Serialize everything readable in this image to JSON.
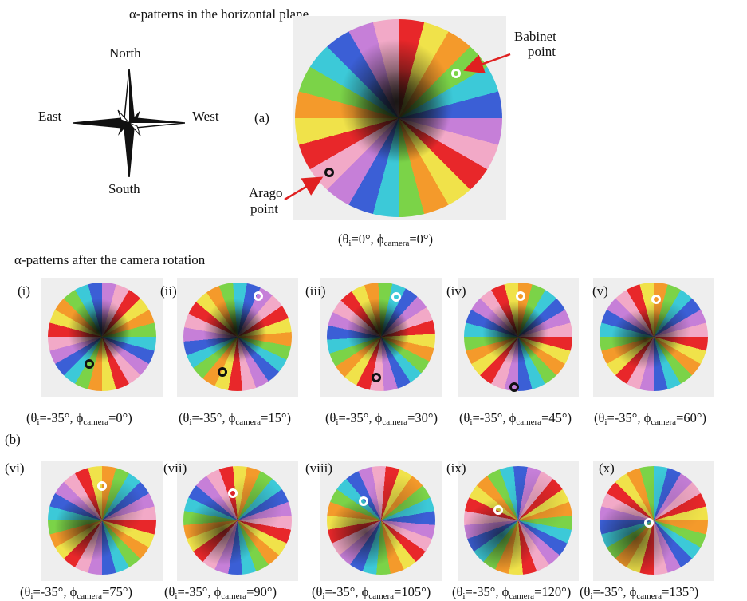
{
  "header_top": "α-patterns in the horizontal plane",
  "header_bottom": "α-patterns after the camera rotation",
  "compass": {
    "north": "North",
    "south": "South",
    "east": "East",
    "west": "West"
  },
  "label_a": "(a)",
  "label_b": "(b)",
  "main": {
    "babinet_label": [
      "Babinet",
      "point"
    ],
    "arago_label": [
      "Arago",
      "point"
    ],
    "caption": {
      "theta": "0°",
      "phi": "0°"
    },
    "rot": 0,
    "tilt": 0.95,
    "babinet": [
      0.55,
      -0.45
    ],
    "arago": [
      -0.67,
      0.55
    ]
  },
  "captions": {
    "theta_sub": "i",
    "phi_sub": "camera"
  },
  "panels": [
    {
      "label": "(i)",
      "theta": "-35°",
      "phi": "0°",
      "rot": 30,
      "tilt": 0.85,
      "white": null,
      "black": [
        -0.25,
        0.55
      ]
    },
    {
      "label": "(ii)",
      "theta": "-35°",
      "phi": "15°",
      "rot": 55,
      "tilt": 0.85,
      "white": [
        0.42,
        -0.82
      ],
      "black": [
        -0.3,
        0.7
      ]
    },
    {
      "label": "(iii)",
      "theta": "-35°",
      "phi": "30°",
      "rot": 72,
      "tilt": 0.85,
      "white": [
        0.3,
        -0.8
      ],
      "black": [
        -0.1,
        0.82
      ]
    },
    {
      "label": "(iv)",
      "theta": "-35°",
      "phi": "45°",
      "rot": 90,
      "tilt": 0.8,
      "white": [
        0.05,
        -0.82
      ],
      "black": [
        -0.08,
        1.0
      ]
    },
    {
      "label": "(v)",
      "theta": "-35°",
      "phi": "60°",
      "rot": 90,
      "tilt": 0.6,
      "white": [
        0.05,
        -0.75
      ],
      "black": null
    },
    {
      "label": "(vi)",
      "theta": "-35°",
      "phi": "75°",
      "rot": 90,
      "tilt": 0.45,
      "white": [
        0.0,
        -0.68
      ],
      "black": null
    },
    {
      "label": "(vii)",
      "theta": "-35°",
      "phi": "90°",
      "rot": 100,
      "tilt": 0.35,
      "white": [
        -0.1,
        -0.55
      ],
      "black": null
    },
    {
      "label": "(viii)",
      "theta": "-35°",
      "phi": "105°",
      "rot": 125,
      "tilt": 0.3,
      "white": [
        -0.35,
        -0.38
      ],
      "black": null
    },
    {
      "label": "(ix)",
      "theta": "-35°",
      "phi": "120°",
      "rot": 160,
      "tilt": 0.22,
      "white": [
        -0.4,
        -0.2
      ],
      "black": null
    },
    {
      "label": "(x)",
      "theta": "-35°",
      "phi": "135°",
      "rot": 180,
      "tilt": 0.15,
      "white": [
        -0.1,
        0.05
      ],
      "black": null
    }
  ]
}
